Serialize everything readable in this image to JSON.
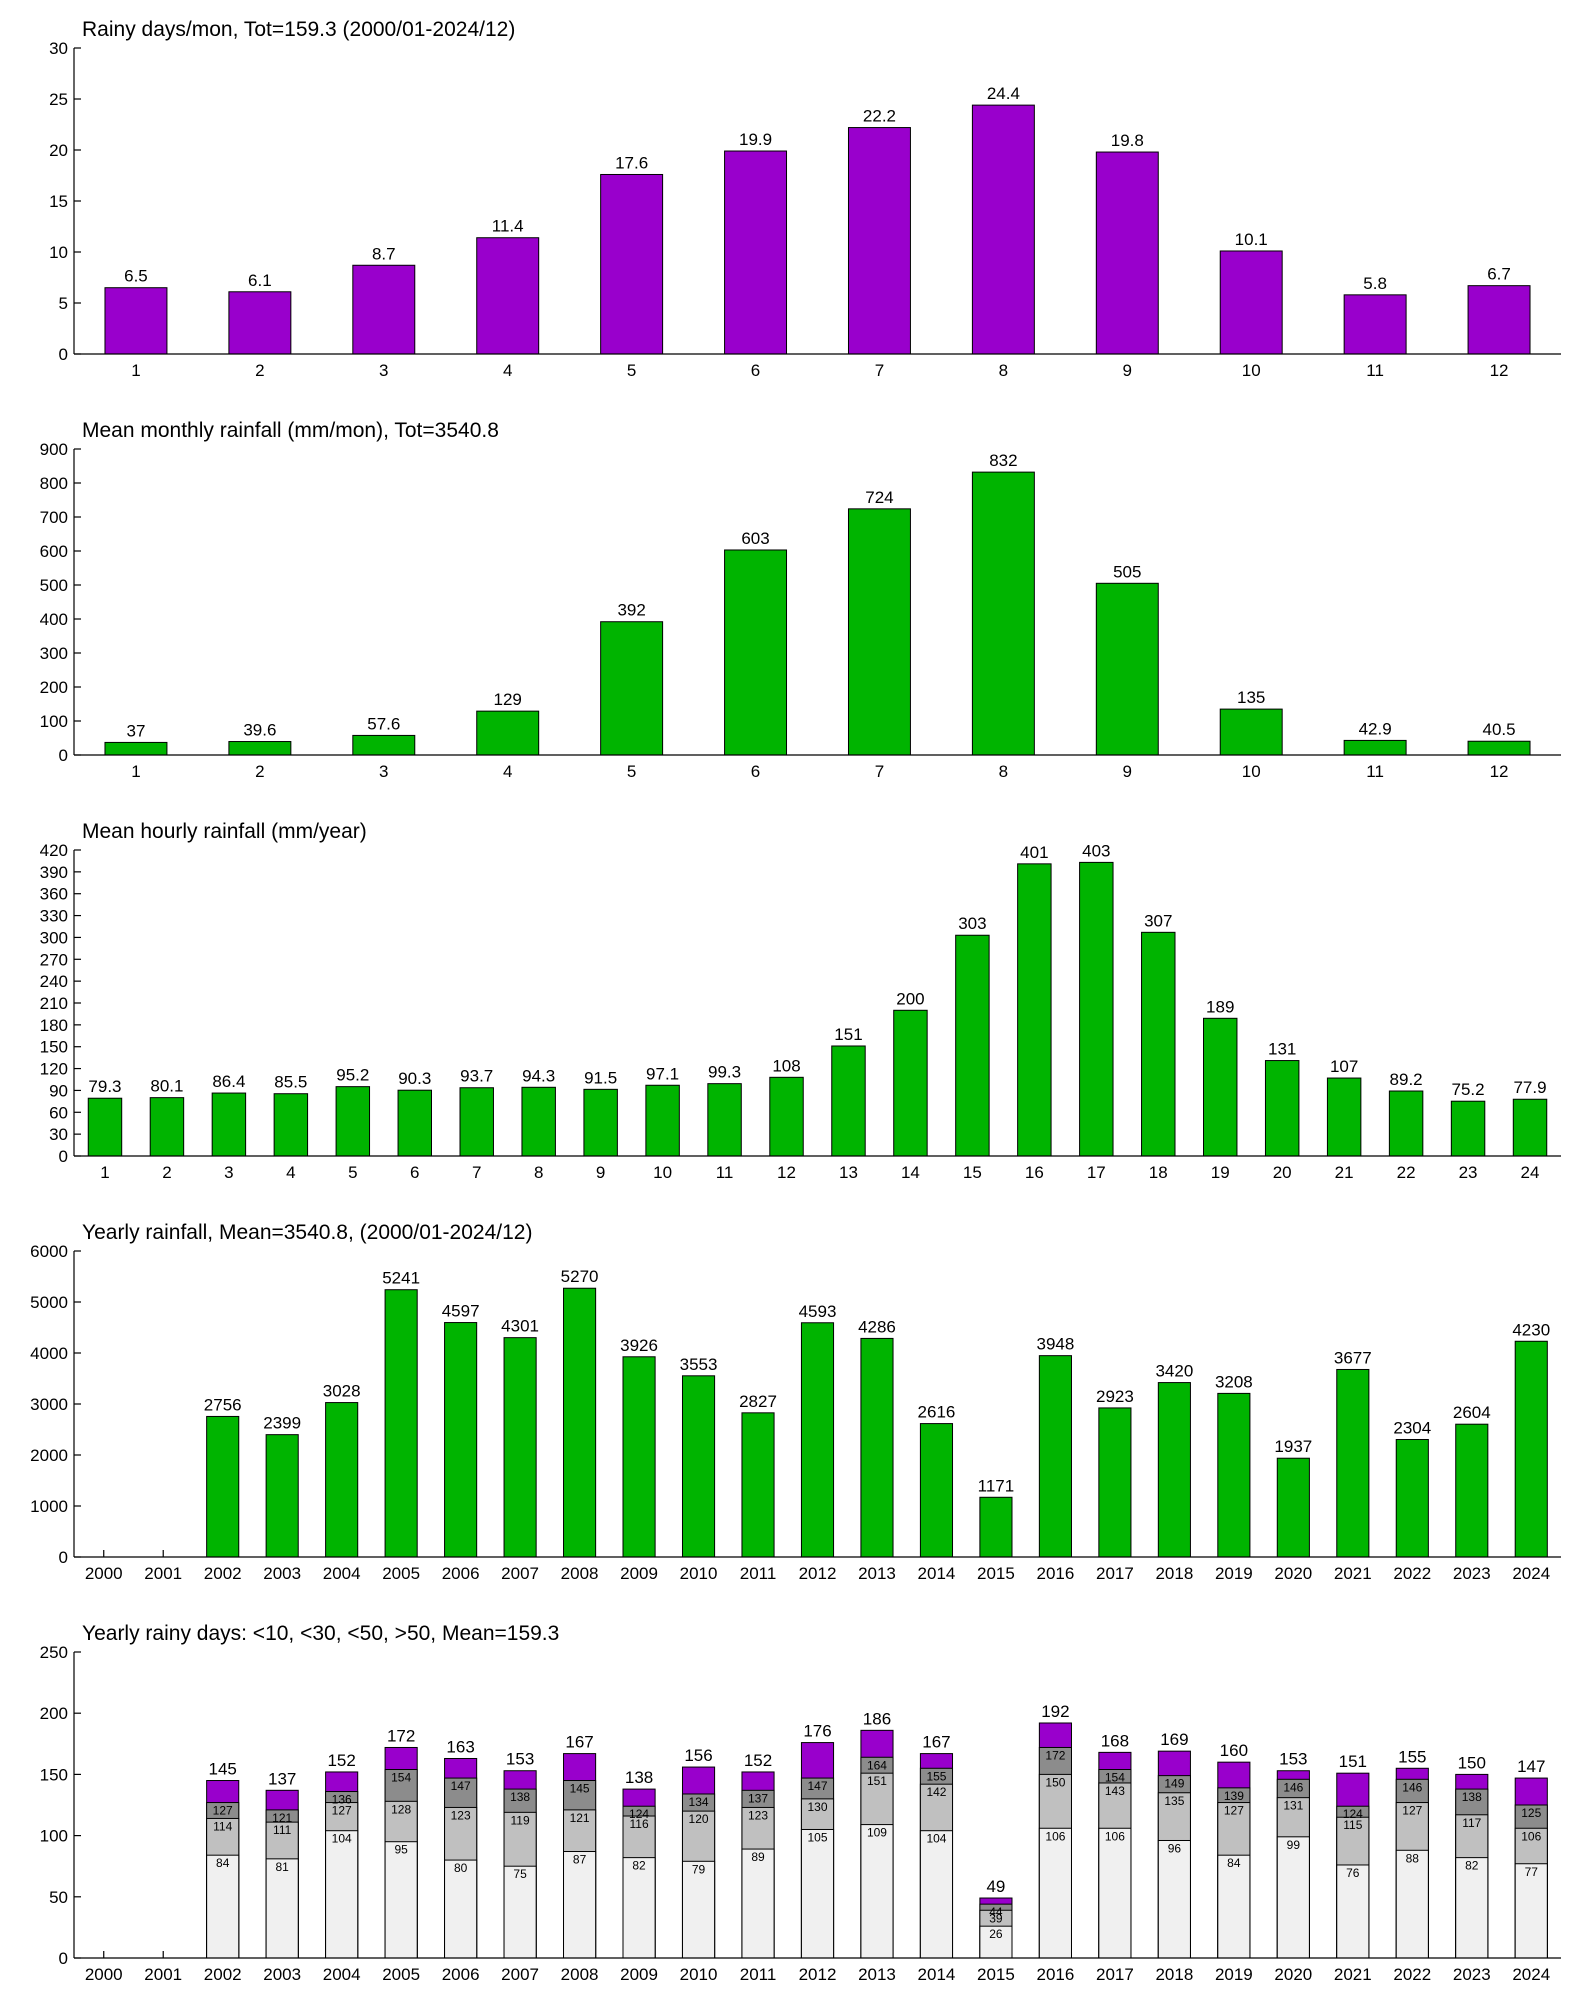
{
  "chart_data": [
    {
      "type": "bar",
      "title": "Rainy days/mon, Tot=159.3 (2000/01-2024/12)",
      "categories": [
        "1",
        "2",
        "3",
        "4",
        "5",
        "6",
        "7",
        "8",
        "9",
        "10",
        "11",
        "12"
      ],
      "values": [
        6.5,
        6.1,
        8.7,
        11.4,
        17.6,
        19.9,
        22.2,
        24.4,
        19.8,
        10.1,
        5.8,
        6.7
      ],
      "color": "#9900cc",
      "ylim": [
        0,
        30
      ],
      "yticks": [
        0,
        5,
        10,
        15,
        20,
        25,
        30
      ]
    },
    {
      "type": "bar",
      "title": "Mean monthly rainfall (mm/mon), Tot=3540.8",
      "categories": [
        "1",
        "2",
        "3",
        "4",
        "5",
        "6",
        "7",
        "8",
        "9",
        "10",
        "11",
        "12"
      ],
      "values": [
        37,
        39.6,
        57.6,
        129,
        392,
        603,
        724,
        832,
        505,
        135,
        42.9,
        40.5
      ],
      "color": "#00b400",
      "ylim": [
        0,
        900
      ],
      "yticks": [
        0,
        100,
        200,
        300,
        400,
        500,
        600,
        700,
        800,
        900
      ]
    },
    {
      "type": "bar",
      "title": "Mean hourly rainfall (mm/year)",
      "categories": [
        "1",
        "2",
        "3",
        "4",
        "5",
        "6",
        "7",
        "8",
        "9",
        "10",
        "11",
        "12",
        "13",
        "14",
        "15",
        "16",
        "17",
        "18",
        "19",
        "20",
        "21",
        "22",
        "23",
        "24"
      ],
      "values": [
        79.3,
        80.1,
        86.4,
        85.5,
        95.2,
        90.3,
        93.7,
        94.3,
        91.5,
        97.1,
        99.3,
        108,
        151,
        200,
        303,
        401,
        403,
        307,
        189,
        131,
        107,
        89.2,
        75.2,
        77.9
      ],
      "color": "#00b400",
      "ylim": [
        0,
        420
      ],
      "yticks": [
        0,
        30,
        60,
        90,
        120,
        150,
        180,
        210,
        240,
        270,
        300,
        330,
        360,
        390,
        420
      ]
    },
    {
      "type": "bar",
      "title": "Yearly rainfall, Mean=3540.8, (2000/01-2024/12)",
      "categories": [
        "2000",
        "2001",
        "2002",
        "2003",
        "2004",
        "2005",
        "2006",
        "2007",
        "2008",
        "2009",
        "2010",
        "2011",
        "2012",
        "2013",
        "2014",
        "2015",
        "2016",
        "2017",
        "2018",
        "2019",
        "2020",
        "2021",
        "2022",
        "2023",
        "2024"
      ],
      "values": [
        null,
        null,
        2756,
        2399,
        3028,
        5241,
        4597,
        4301,
        5270,
        3926,
        3553,
        2827,
        4593,
        4286,
        2616,
        1171,
        3948,
        2923,
        3420,
        3208,
        1937,
        3677,
        2304,
        2604,
        4230
      ],
      "color": "#00b400",
      "ylim": [
        0,
        6000
      ],
      "yticks": [
        0,
        1000,
        2000,
        3000,
        4000,
        5000,
        6000
      ]
    },
    {
      "type": "overlap",
      "title": "Yearly rainy days: <10, <30, <50, >50, Mean=159.3",
      "categories": [
        "2000",
        "2001",
        "2002",
        "2003",
        "2004",
        "2005",
        "2006",
        "2007",
        "2008",
        "2009",
        "2010",
        "2011",
        "2012",
        "2013",
        "2014",
        "2015",
        "2016",
        "2017",
        "2018",
        "2019",
        "2020",
        "2021",
        "2022",
        "2023",
        "2024"
      ],
      "series": [
        {
          "color": "#f0f0f0",
          "values": [
            null,
            null,
            84,
            81,
            104,
            95,
            80,
            75,
            87,
            82,
            79,
            89,
            105,
            109,
            104,
            26,
            106,
            106,
            96,
            84,
            99,
            76,
            88,
            82,
            77
          ]
        },
        {
          "color": "#c0c0c0",
          "values": [
            null,
            null,
            114,
            111,
            127,
            128,
            123,
            119,
            121,
            116,
            120,
            123,
            130,
            151,
            142,
            39,
            150,
            143,
            135,
            127,
            131,
            115,
            127,
            117,
            106
          ]
        },
        {
          "color": "#8c8c8c",
          "values": [
            null,
            null,
            127,
            121,
            136,
            154,
            147,
            138,
            145,
            124,
            134,
            137,
            147,
            164,
            155,
            44,
            172,
            154,
            149,
            139,
            146,
            124,
            146,
            138,
            125
          ]
        },
        {
          "color": "#9900cc",
          "values": [
            null,
            null,
            145,
            137,
            152,
            172,
            163,
            153,
            167,
            138,
            156,
            152,
            176,
            186,
            167,
            49,
            192,
            168,
            169,
            160,
            153,
            151,
            155,
            150,
            147
          ]
        }
      ],
      "ylim": [
        0,
        250
      ],
      "yticks": [
        0,
        50,
        100,
        150,
        200,
        250
      ]
    }
  ]
}
